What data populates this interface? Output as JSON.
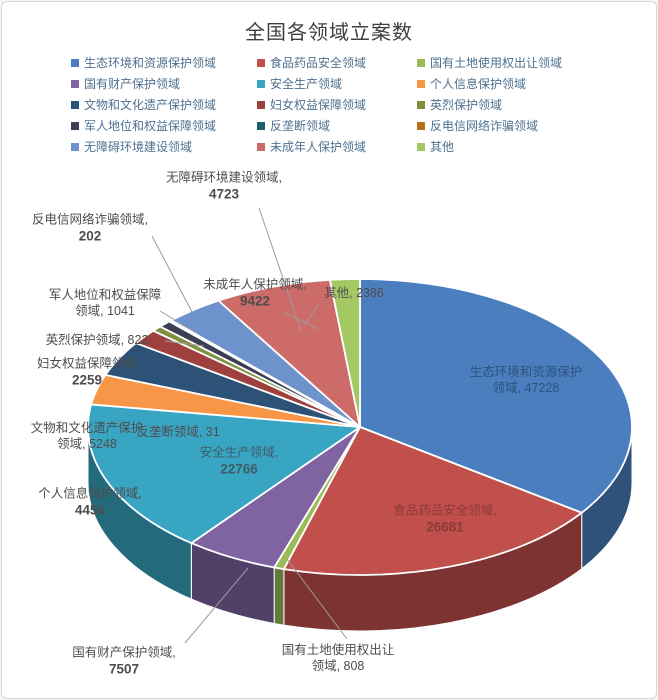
{
  "title": "全国各领域立案数",
  "chart_data": {
    "type": "pie",
    "style": "3d",
    "title": "全国各领域立案数",
    "legend_position": "top",
    "grid": false,
    "total": 135580,
    "series": [
      {
        "name": "生态环境和资源保护领域",
        "value": 47228,
        "color": "#4A7EBE",
        "label_lines": [
          "生态环境和资源保护",
          "领域, 47228"
        ]
      },
      {
        "name": "食品药品安全领域",
        "value": 26681,
        "color": "#C1504C",
        "label_lines": [
          "食品药品安全领域,",
          "26681"
        ]
      },
      {
        "name": "国有土地使用权出让领域",
        "value": 808,
        "color": "#9BBB59",
        "label_lines": [
          "国有土地使用权出让",
          "领域, 808"
        ]
      },
      {
        "name": "国有财产保护领域",
        "value": 7507,
        "color": "#8064A2",
        "label_lines": [
          "国有财产保护领域,",
          "7507"
        ]
      },
      {
        "name": "安全生产领域",
        "value": 22766,
        "color": "#38A5C3",
        "label_lines": [
          "安全生产领域,",
          "22766"
        ]
      },
      {
        "name": "个人信息保护领域",
        "value": 4456,
        "color": "#F79646",
        "label_lines": [
          "个人信息保护领域,",
          "4456"
        ]
      },
      {
        "name": "文物和文化遗产保护领域",
        "value": 5248,
        "color": "#2C5277",
        "label_lines": [
          "文物和文化遗产保护",
          "领域, 5248"
        ]
      },
      {
        "name": "妇女权益保障领域",
        "value": 2259,
        "color": "#9E413E",
        "label_lines": [
          "妇女权益保障领域",
          "2259"
        ]
      },
      {
        "name": "英烈保护领域",
        "value": 822,
        "color": "#7F913D",
        "label_lines": [
          "英烈保护领域, 822"
        ]
      },
      {
        "name": "军人地位和权益保障领域",
        "value": 1041,
        "color": "#3C3F54",
        "label_lines": [
          "军人地位和权益保障",
          "领域, 1041"
        ]
      },
      {
        "name": "反垄断领域",
        "value": 31,
        "color": "#215E6B",
        "label_lines": [
          "反垄断领域, 31"
        ]
      },
      {
        "name": "反电信网络诈骗领域",
        "value": 202,
        "color": "#B96F1E",
        "label_lines": [
          "反电信网络诈骗领域,",
          "202"
        ]
      },
      {
        "name": "无障碍环境建设领域",
        "value": 4723,
        "color": "#6E92CB",
        "label_lines": [
          "无障碍环境建设领域,",
          "4723"
        ]
      },
      {
        "name": "未成年人保护领域",
        "value": 9422,
        "color": "#CD6B69",
        "label_lines": [
          "未成年人保护领域,",
          "9422"
        ]
      },
      {
        "name": "其他",
        "value": 2386,
        "color": "#A4C964",
        "label_lines": [
          "其他, 2386"
        ]
      }
    ]
  }
}
